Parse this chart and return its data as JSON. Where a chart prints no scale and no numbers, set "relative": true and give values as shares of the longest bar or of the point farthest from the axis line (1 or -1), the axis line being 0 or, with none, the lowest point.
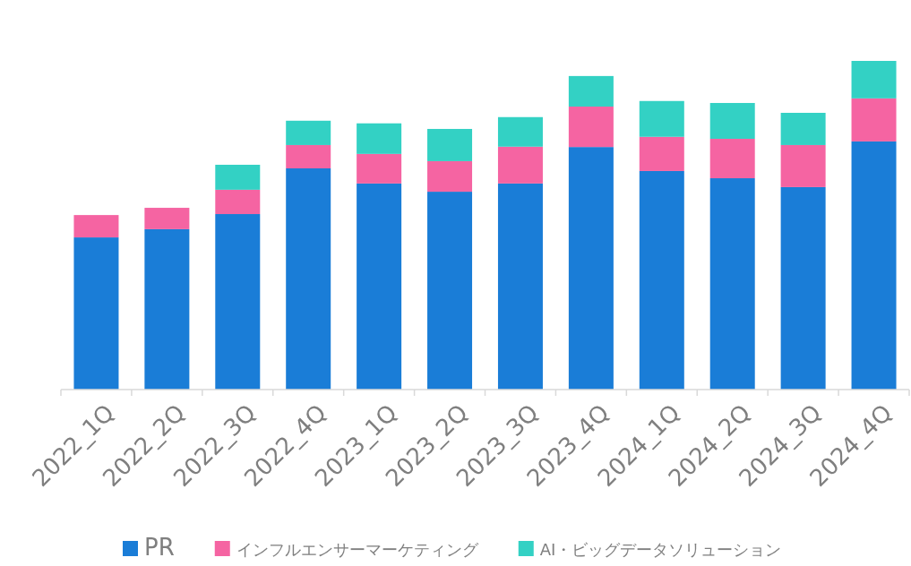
{
  "chart_data": {
    "type": "bar",
    "relative": true,
    "stacked": true,
    "legend": "bottom",
    "grid": false,
    "categories": [
      "2022_1Q",
      "2022_2Q",
      "2022_3Q",
      "2022_4Q",
      "2023_1Q",
      "2023_2Q",
      "2023_3Q",
      "2023_4Q",
      "2024_1Q",
      "2024_2Q",
      "2024_3Q",
      "2024_4Q"
    ],
    "series": [
      {
        "name": "PR",
        "color": "#1a7dd7",
        "values": [
          0.463,
          0.488,
          0.534,
          0.673,
          0.627,
          0.602,
          0.627,
          0.738,
          0.665,
          0.643,
          0.616,
          0.755
        ]
      },
      {
        "name": "インフルエンサーマーケティング",
        "color": "#f564a2",
        "values": [
          0.068,
          0.065,
          0.074,
          0.071,
          0.09,
          0.093,
          0.112,
          0.123,
          0.104,
          0.12,
          0.128,
          0.131
        ]
      },
      {
        "name": "AI・ビッグデータソリューション",
        "color": "#33d1c4",
        "values": [
          0,
          0,
          0.076,
          0.074,
          0.093,
          0.098,
          0.09,
          0.093,
          0.109,
          0.109,
          0.098,
          0.114
        ]
      }
    ]
  }
}
